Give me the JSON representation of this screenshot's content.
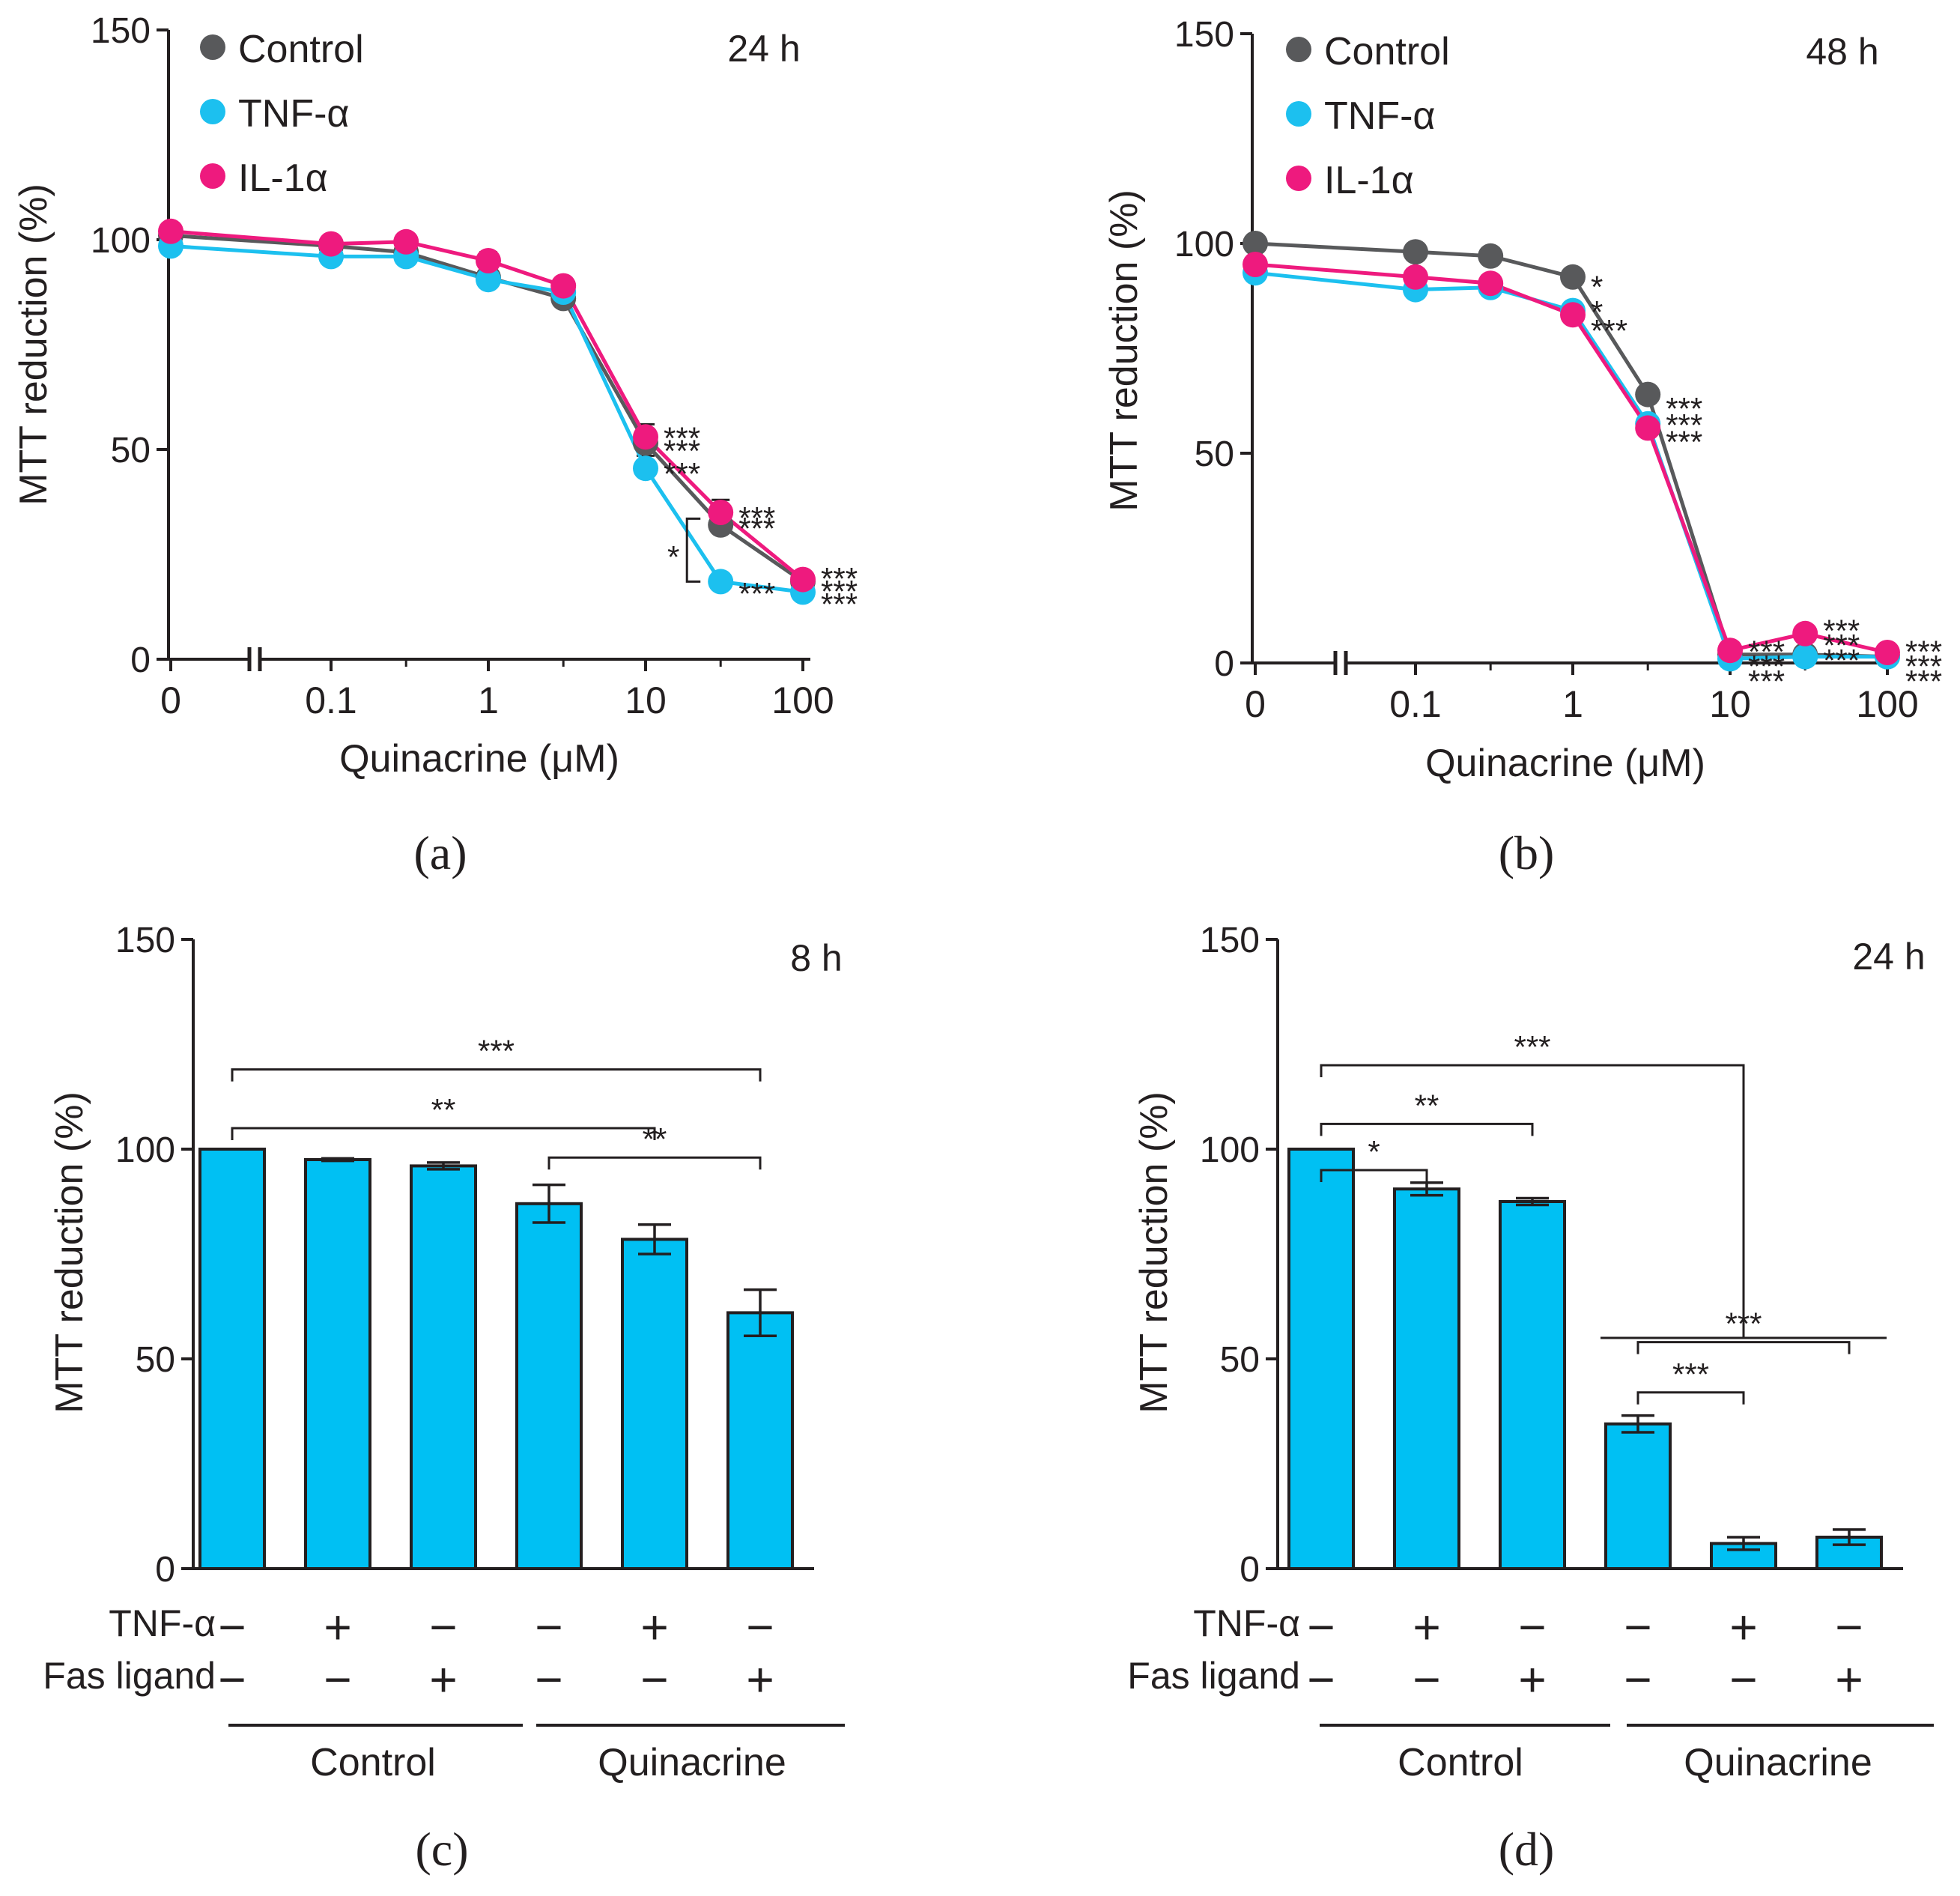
{
  "chart_data": [
    {
      "type": "line",
      "panel": "(a)",
      "time_label": "24 h",
      "xlabel": "Quinacrine (μM)",
      "ylabel": "MTT reduction (%)",
      "x_tick_labels": [
        "0",
        "0.1",
        "1",
        "10",
        "100"
      ],
      "y_tick_labels": [
        "0",
        "50",
        "100",
        "150"
      ],
      "ylim": [
        0,
        150
      ],
      "x": [
        0,
        0.1,
        0.3,
        1,
        3,
        10,
        30,
        100
      ],
      "series": [
        {
          "name": "Control",
          "color": "#58595b",
          "values": [
            101,
            98.5,
            97,
            91,
            86,
            51.5,
            32,
            18.5
          ]
        },
        {
          "name": "TNF-α",
          "color": "#1cc0ef",
          "values": [
            98.5,
            96,
            96,
            90.5,
            87.5,
            45.5,
            18.5,
            16
          ]
        },
        {
          "name": "IL-1α",
          "color": "#ee1a7e",
          "values": [
            102,
            99,
            99.5,
            95,
            89,
            53,
            35,
            19
          ]
        }
      ],
      "error_bars": [
        {
          "series": "Control",
          "x": 10,
          "value": 51.5,
          "err": 2
        },
        {
          "series": "IL-1α",
          "x": 10,
          "value": 53,
          "err": 3
        },
        {
          "series": "TNF-α",
          "x": 10,
          "value": 45.5,
          "err": 3
        },
        {
          "series": "IL-1α",
          "x": 30,
          "value": 35,
          "err": 3
        },
        {
          "series": "Control",
          "x": 30,
          "value": 32,
          "err": 2
        },
        {
          "series": "IL-1α",
          "x": 1,
          "value": 95,
          "err": 2
        },
        {
          "series": "Control",
          "x": 1,
          "value": 91,
          "err": 3
        }
      ],
      "annotations": [
        {
          "text": "***",
          "x": 10,
          "y": 54
        },
        {
          "text": "***",
          "x": 10,
          "y": 51
        },
        {
          "text": "***",
          "x": 10,
          "y": 45.5
        },
        {
          "text": "***",
          "x": 30,
          "y": 35
        },
        {
          "text": "***",
          "x": 30,
          "y": 32.5
        },
        {
          "text": "***",
          "x": 30,
          "y": 17
        },
        {
          "text": "***",
          "x": 100,
          "y": 20.5
        },
        {
          "text": "***",
          "x": 100,
          "y": 17.5
        },
        {
          "text": "***",
          "x": 100,
          "y": 14.5
        },
        {
          "text": "*",
          "x": 20,
          "y": 25,
          "bracket": [
            18.5,
            33.5
          ]
        }
      ]
    },
    {
      "type": "line",
      "panel": "(b)",
      "time_label": "48 h",
      "xlabel": "Quinacrine (μM)",
      "ylabel": "MTT reduction (%)",
      "x_tick_labels": [
        "0",
        "0.1",
        "1",
        "10",
        "100"
      ],
      "y_tick_labels": [
        "0",
        "50",
        "100",
        "150"
      ],
      "ylim": [
        0,
        150
      ],
      "x": [
        0,
        0.1,
        0.3,
        1,
        3,
        10,
        30,
        100
      ],
      "series": [
        {
          "name": "Control",
          "color": "#58595b",
          "values": [
            100,
            98,
            97,
            92,
            64,
            2,
            2,
            1.5
          ]
        },
        {
          "name": "TNF-α",
          "color": "#1cc0ef",
          "values": [
            93,
            89,
            89.5,
            84,
            57,
            1,
            1.5,
            1.5
          ]
        },
        {
          "name": "IL-1α",
          "color": "#ee1a7e",
          "values": [
            95,
            92,
            90.5,
            83,
            56,
            3,
            7,
            2.5
          ]
        }
      ],
      "annotations": [
        {
          "text": "*",
          "x": 1,
          "y": 91
        },
        {
          "text": "*",
          "x": 1,
          "y": 85
        },
        {
          "text": "***",
          "x": 1,
          "y": 80.5
        },
        {
          "text": "***",
          "x": 3,
          "y": 62
        },
        {
          "text": "***",
          "x": 3,
          "y": 58
        },
        {
          "text": "***",
          "x": 3,
          "y": 54
        },
        {
          "text": "***",
          "x": 10,
          "y": 4
        },
        {
          "text": "***",
          "x": 10,
          "y": 0.5
        },
        {
          "text": "***",
          "x": 10,
          "y": -3
        },
        {
          "text": "***",
          "x": 30,
          "y": 9
        },
        {
          "text": "***",
          "x": 30,
          "y": 5.5
        },
        {
          "text": "***",
          "x": 30,
          "y": 2
        },
        {
          "text": "***",
          "x": 100,
          "y": 4
        },
        {
          "text": "***",
          "x": 100,
          "y": 0.5
        },
        {
          "text": "***",
          "x": 100,
          "y": -3
        }
      ]
    },
    {
      "type": "bar",
      "panel": "(c)",
      "time_label": "8 h",
      "ylabel": "MTT reduction (%)",
      "y_tick_labels": [
        "0",
        "50",
        "100",
        "150"
      ],
      "ylim": [
        0,
        150
      ],
      "bar_color": "#00c0f3",
      "values": [
        100,
        97.5,
        96,
        87,
        78.5,
        61
      ],
      "errors": [
        0,
        0.3,
        0.8,
        4.5,
        3.5,
        5.5
      ],
      "row_labels": [
        "TNF-α",
        "Fas ligand"
      ],
      "tnf": [
        "−",
        "+",
        "−",
        "−",
        "+",
        "−"
      ],
      "fas": [
        "−",
        "−",
        "+",
        "−",
        "−",
        "+"
      ],
      "groups": [
        "Control",
        "Quinacrine"
      ],
      "significance": [
        {
          "text": "***",
          "from": 0,
          "to": 5,
          "y": 119
        },
        {
          "text": "**",
          "from": 0,
          "to": 4,
          "y": 105
        },
        {
          "text": "**",
          "from": 3,
          "to": 5,
          "y": 98
        }
      ]
    },
    {
      "type": "bar",
      "panel": "(d)",
      "time_label": "24 h",
      "ylabel": "MTT reduction (%)",
      "y_tick_labels": [
        "0",
        "50",
        "100",
        "150"
      ],
      "ylim": [
        0,
        150
      ],
      "bar_color": "#00c0f3",
      "values": [
        100,
        90.5,
        87.5,
        34.5,
        6,
        7.5
      ],
      "errors": [
        0,
        1.5,
        0.8,
        2,
        1.5,
        1.8
      ],
      "row_labels": [
        "TNF-α",
        "Fas ligand"
      ],
      "tnf": [
        "−",
        "+",
        "−",
        "−",
        "+",
        "−"
      ],
      "fas": [
        "−",
        "−",
        "+",
        "−",
        "−",
        "+"
      ],
      "groups": [
        "Control",
        "Quinacrine"
      ],
      "significance": [
        {
          "text": "***",
          "from": 0,
          "to": "3-5",
          "y": 120
        },
        {
          "text": "**",
          "from": 0,
          "to": 2,
          "y": 106
        },
        {
          "text": "*",
          "from": 0,
          "to": 1,
          "y": 95
        },
        {
          "text": "***",
          "from": 3,
          "to": 5,
          "y": 54
        },
        {
          "text": "***",
          "from": 3,
          "to": 4,
          "y": 42
        }
      ]
    }
  ]
}
